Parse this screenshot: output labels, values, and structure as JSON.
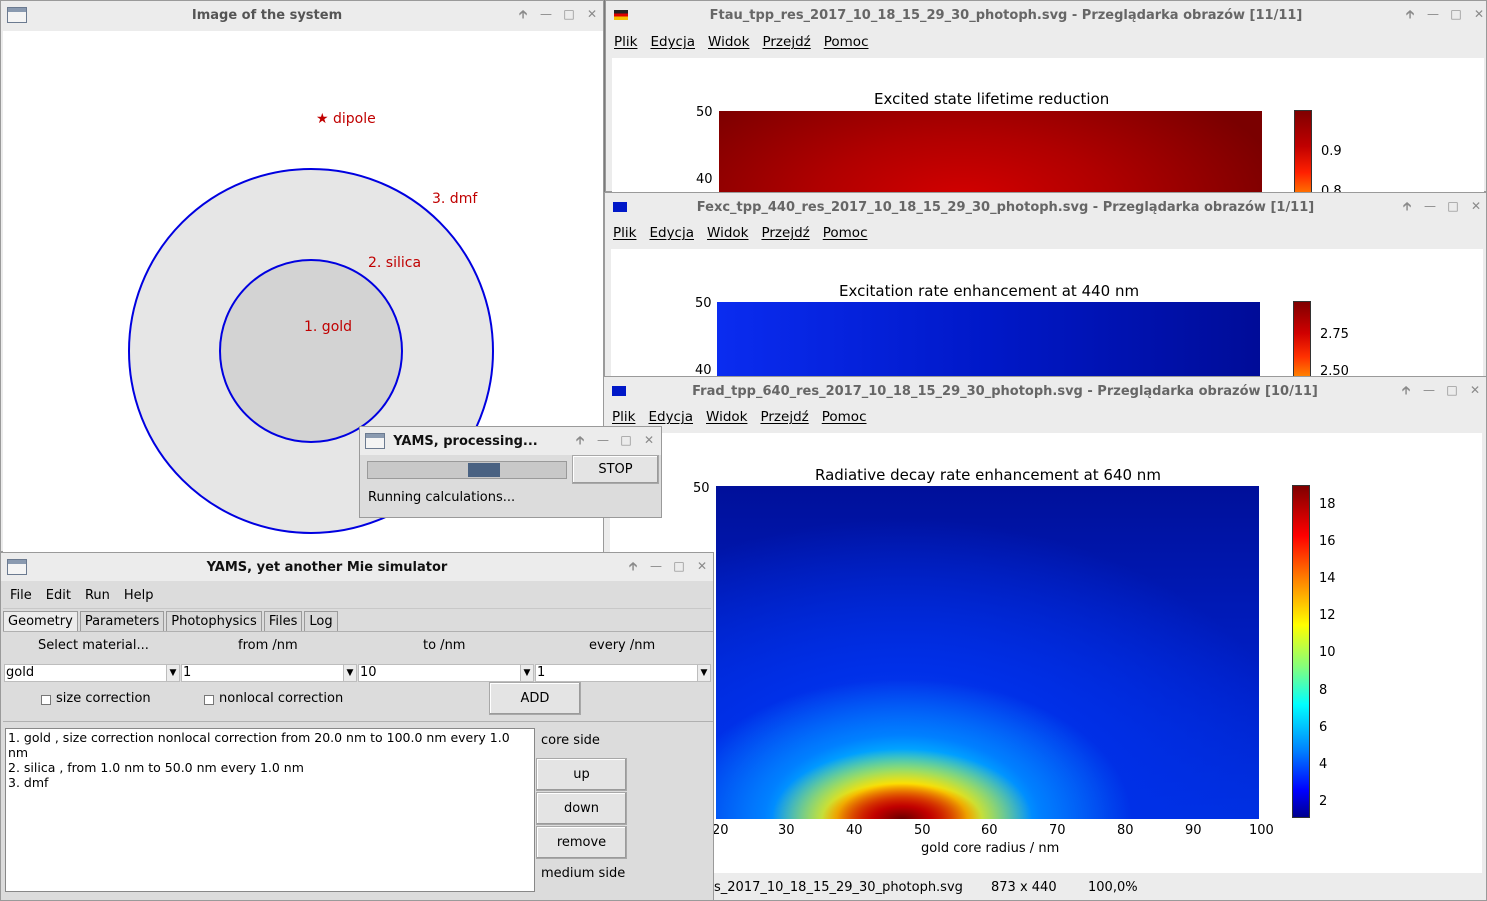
{
  "system_window": {
    "title": "Image of the system",
    "dipole_label": "dipole",
    "layers": [
      "1. gold",
      "2. silica",
      "3. dmf"
    ]
  },
  "viewer_menu": [
    "Plik",
    "Edycja",
    "Widok",
    "Przejdź",
    "Pomoc"
  ],
  "viewers": [
    {
      "title": "Ftau_tpp_res_2017_10_18_15_29_30_photoph.svg - Przeglądarka obrazów [11/11]",
      "chart_title": "Excited state lifetime reduction",
      "y_ticks": [
        "50",
        "40"
      ],
      "cbar_ticks": [
        "0.9",
        "0.8"
      ]
    },
    {
      "title": "Fexc_tpp_440_res_2017_10_18_15_29_30_photoph.svg - Przeglądarka obrazów [1/11]",
      "chart_title": "Excitation rate enhancement at 440 nm",
      "y_ticks": [
        "50",
        "40"
      ],
      "cbar_ticks": [
        "2.75",
        "2.50"
      ]
    },
    {
      "title": "Frad_tpp_640_res_2017_10_18_15_29_30_photoph.svg - Przeglądarka obrazów [10/11]",
      "chart_title": "Radiative decay rate enhancement at 640 nm",
      "y_ticks": [
        "50"
      ],
      "x_ticks": [
        "20",
        "30",
        "40",
        "50",
        "60",
        "70",
        "80",
        "90",
        "100"
      ],
      "xlabel": "gold core radius / nm",
      "cbar_ticks": [
        "18",
        "16",
        "14",
        "12",
        "10",
        "8",
        "6",
        "4",
        "2"
      ],
      "status_file": "s_2017_10_18_15_29_30_photoph.svg",
      "status_size": "873 x 440",
      "status_zoom": "100,0%"
    }
  ],
  "progress": {
    "title": "YAMS, processing...",
    "stop_label": "STOP",
    "status": "Running calculations...",
    "fraction": 0.6
  },
  "yams": {
    "title": "YAMS, yet another Mie simulator",
    "menu": [
      "File",
      "Edit",
      "Run",
      "Help"
    ],
    "tabs": [
      "Geometry",
      "Parameters",
      "Photophysics",
      "Files",
      "Log"
    ],
    "headers": {
      "material": "Select material...",
      "from": "from /nm",
      "to": "to /nm",
      "every": "every /nm"
    },
    "values": {
      "material": "gold",
      "from": "1",
      "to": "10",
      "every": "1"
    },
    "size_correction": "size correction",
    "nonlocal_correction": "nonlocal correction",
    "add_label": "ADD",
    "layers": [
      "1. gold , size correction nonlocal correction from 20.0 nm to 100.0 nm every 1.0 nm",
      "2. silica , from 1.0 nm to 50.0 nm every 1.0 nm",
      "3. dmf"
    ],
    "core_side": "core side",
    "up": "up",
    "down": "down",
    "remove": "remove",
    "medium_side": "medium side"
  },
  "chart_data": [
    {
      "type": "heatmap",
      "title": "Excited state lifetime reduction",
      "ylim_visible": [
        40,
        50
      ],
      "colorbar_ticks": [
        0.9,
        0.8
      ]
    },
    {
      "type": "heatmap",
      "title": "Excitation rate enhancement at 440 nm",
      "ylim_visible": [
        40,
        50
      ],
      "colorbar_ticks": [
        2.75,
        2.5
      ]
    },
    {
      "type": "heatmap",
      "title": "Radiative decay rate enhancement at 640 nm",
      "xlabel": "gold core radius / nm",
      "xlim": [
        20,
        100
      ],
      "x_ticks": [
        20,
        30,
        40,
        50,
        60,
        70,
        80,
        90,
        100
      ],
      "colorbar_ticks": [
        2,
        4,
        6,
        8,
        10,
        12,
        14,
        16,
        18
      ],
      "colorbar_range": [
        1,
        19
      ],
      "peak": {
        "x": 48,
        "value": 19
      }
    }
  ]
}
